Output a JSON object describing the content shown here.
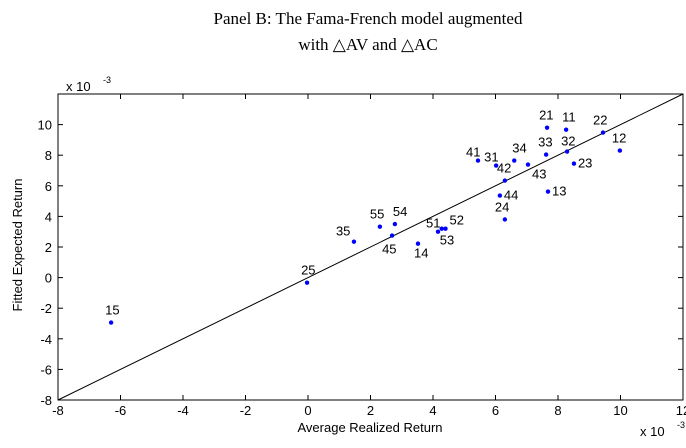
{
  "chart_data": {
    "type": "scatter",
    "title": [
      "Panel B: The Fama-French model augmented",
      "with △AV and △AC"
    ],
    "x_label": "Average Realized Return",
    "y_label": "Fitted Expected Return",
    "x_multiplier": {
      "base": "x 10",
      "exponent": "-3"
    },
    "y_multiplier": {
      "base": "x 10",
      "exponent": "-3"
    },
    "point_labels": [
      "15",
      "25",
      "35",
      "55",
      "54",
      "45",
      "14",
      "51",
      "52",
      "53",
      "24",
      "44",
      "13",
      "42",
      "43",
      "41",
      "31",
      "34",
      "33",
      "32",
      "23",
      "21",
      "11",
      "22",
      "12"
    ],
    "x": [
      -6.3,
      -0.03,
      1.47,
      2.3,
      2.78,
      2.69,
      3.52,
      4.16,
      4.4,
      4.28,
      6.3,
      6.14,
      7.68,
      6.3,
      7.04,
      5.44,
      6.02,
      6.6,
      7.62,
      8.29,
      8.51,
      7.65,
      8.26,
      9.44,
      9.98
    ],
    "y": [
      -2.94,
      -0.33,
      2.35,
      3.33,
      3.5,
      2.75,
      2.22,
      3.0,
      3.2,
      3.2,
      3.8,
      5.36,
      5.62,
      6.34,
      7.39,
      7.65,
      7.32,
      7.65,
      8.04,
      8.24,
      7.45,
      9.8,
      9.67,
      9.48,
      8.3
    ],
    "color": "#0000ff",
    "xlim": [
      -8,
      12
    ],
    "ylim": [
      -8,
      12
    ],
    "xticks": [
      -8,
      -6,
      -4,
      -2,
      0,
      2,
      4,
      6,
      8,
      10,
      12
    ],
    "yticks": [
      -8,
      -6,
      -4,
      -2,
      0,
      2,
      4,
      6,
      8,
      10
    ]
  }
}
